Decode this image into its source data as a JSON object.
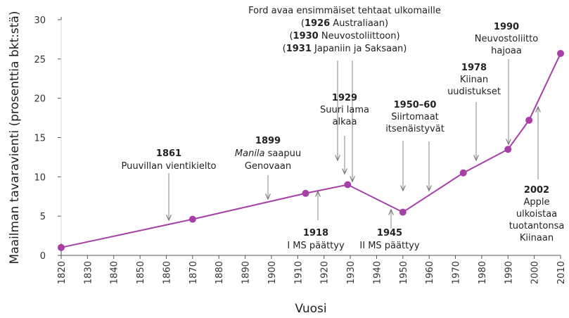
{
  "chart_data": {
    "type": "line",
    "xlabel": "Vuosi",
    "ylabel": "Maailman tavaravienti (prosenttia bkt:stä)",
    "xlim": [
      1820,
      2010
    ],
    "ylim": [
      0,
      30
    ],
    "x_ticks": [
      "1820",
      "1830",
      "1840",
      "1850",
      "1860",
      "1870",
      "1880",
      "1890",
      "1900",
      "1910",
      "1920",
      "1930",
      "1940",
      "1950",
      "1960",
      "1970",
      "1980",
      "1990",
      "2000",
      "2010"
    ],
    "y_ticks": [
      "0",
      "5",
      "10",
      "15",
      "20",
      "25",
      "30"
    ],
    "grid": false,
    "series_color": "#a63fa6",
    "x": [
      1820,
      1870,
      1913,
      1929,
      1950,
      1973,
      1990,
      1998,
      2010
    ],
    "y": [
      1.0,
      4.6,
      7.9,
      9.0,
      5.5,
      10.5,
      13.5,
      17.2,
      25.7
    ],
    "annotations": [
      {
        "lines": [
          "1861",
          "Puuvillan vientikielto"
        ]
      },
      {
        "lines": [
          "1899",
          "Manila saapuu",
          "Genovaan"
        ]
      },
      {
        "lines": [
          "Ford avaa ensimmäiset tehtaat ulkomaille",
          "1926 Australiaan)",
          "1930 Neuvostoliittoon)",
          "1931 Japaniin ja Saksaan)"
        ]
      },
      {
        "lines": [
          "1929",
          "Suuri lama",
          "alkaa"
        ]
      },
      {
        "lines": [
          "1950–60",
          "Siirtomaat",
          "itsenäistyvät"
        ]
      },
      {
        "lines": [
          "1978",
          "Kiinan",
          "uudistukset"
        ]
      },
      {
        "lines": [
          "1990",
          "Neuvostoliitto",
          "hajoaa"
        ]
      },
      {
        "lines": [
          "1918",
          "I MS päättyy"
        ]
      },
      {
        "lines": [
          "1945",
          "II MS päättyy"
        ]
      },
      {
        "lines": [
          "2002",
          "Apple",
          "ulkoistaa",
          "tuotantonsa",
          "Kiinaan"
        ]
      }
    ]
  }
}
